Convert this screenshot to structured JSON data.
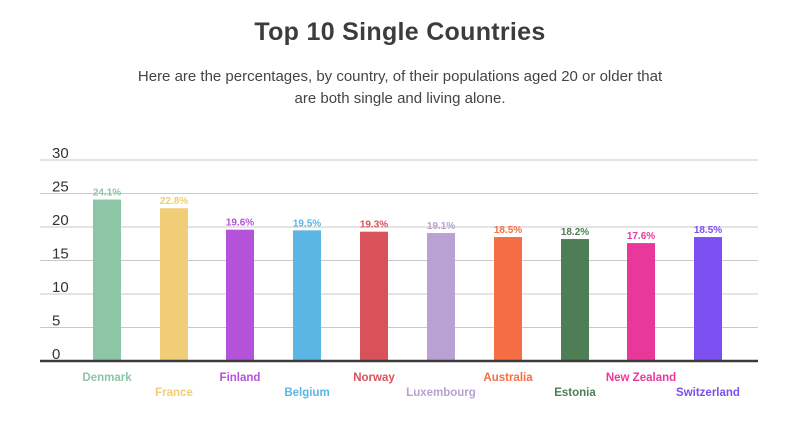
{
  "header": {
    "title": "Top 10 Single Countries",
    "subtitle": "Here are the percentages, by country, of their populations aged 20 or older that are both single and living alone."
  },
  "chart_data": {
    "type": "bar",
    "title": "Top 10 Single Countries",
    "subtitle": "Here are the percentages, by country, of their populations aged 20 or older that are both single and living alone.",
    "xlabel": "",
    "ylabel": "",
    "ylim": [
      0,
      30
    ],
    "yticks": [
      "0",
      "5",
      "10",
      "15",
      "20",
      "25",
      "30"
    ],
    "grid": true,
    "legend": "none",
    "categories": [
      "Denmark",
      "France",
      "Finland",
      "Belgium",
      "Norway",
      "Luxembourg",
      "Australia",
      "Estonia",
      "New Zealand",
      "Switzerland"
    ],
    "values": [
      24.1,
      22.8,
      19.6,
      19.5,
      19.3,
      19.1,
      18.5,
      18.2,
      17.6,
      18.5
    ],
    "value_labels": [
      "24.1%",
      "22.8%",
      "19.6%",
      "19.5%",
      "19.3%",
      "19.1%",
      "18.5%",
      "18.2%",
      "17.6%",
      "18.5%"
    ],
    "colors": [
      "#8dc6a6",
      "#f0cd76",
      "#b452d9",
      "#5bb6e4",
      "#d9525a",
      "#b9a1d4",
      "#f46d43",
      "#4f7d55",
      "#e8399a",
      "#7b4ff0"
    ]
  }
}
